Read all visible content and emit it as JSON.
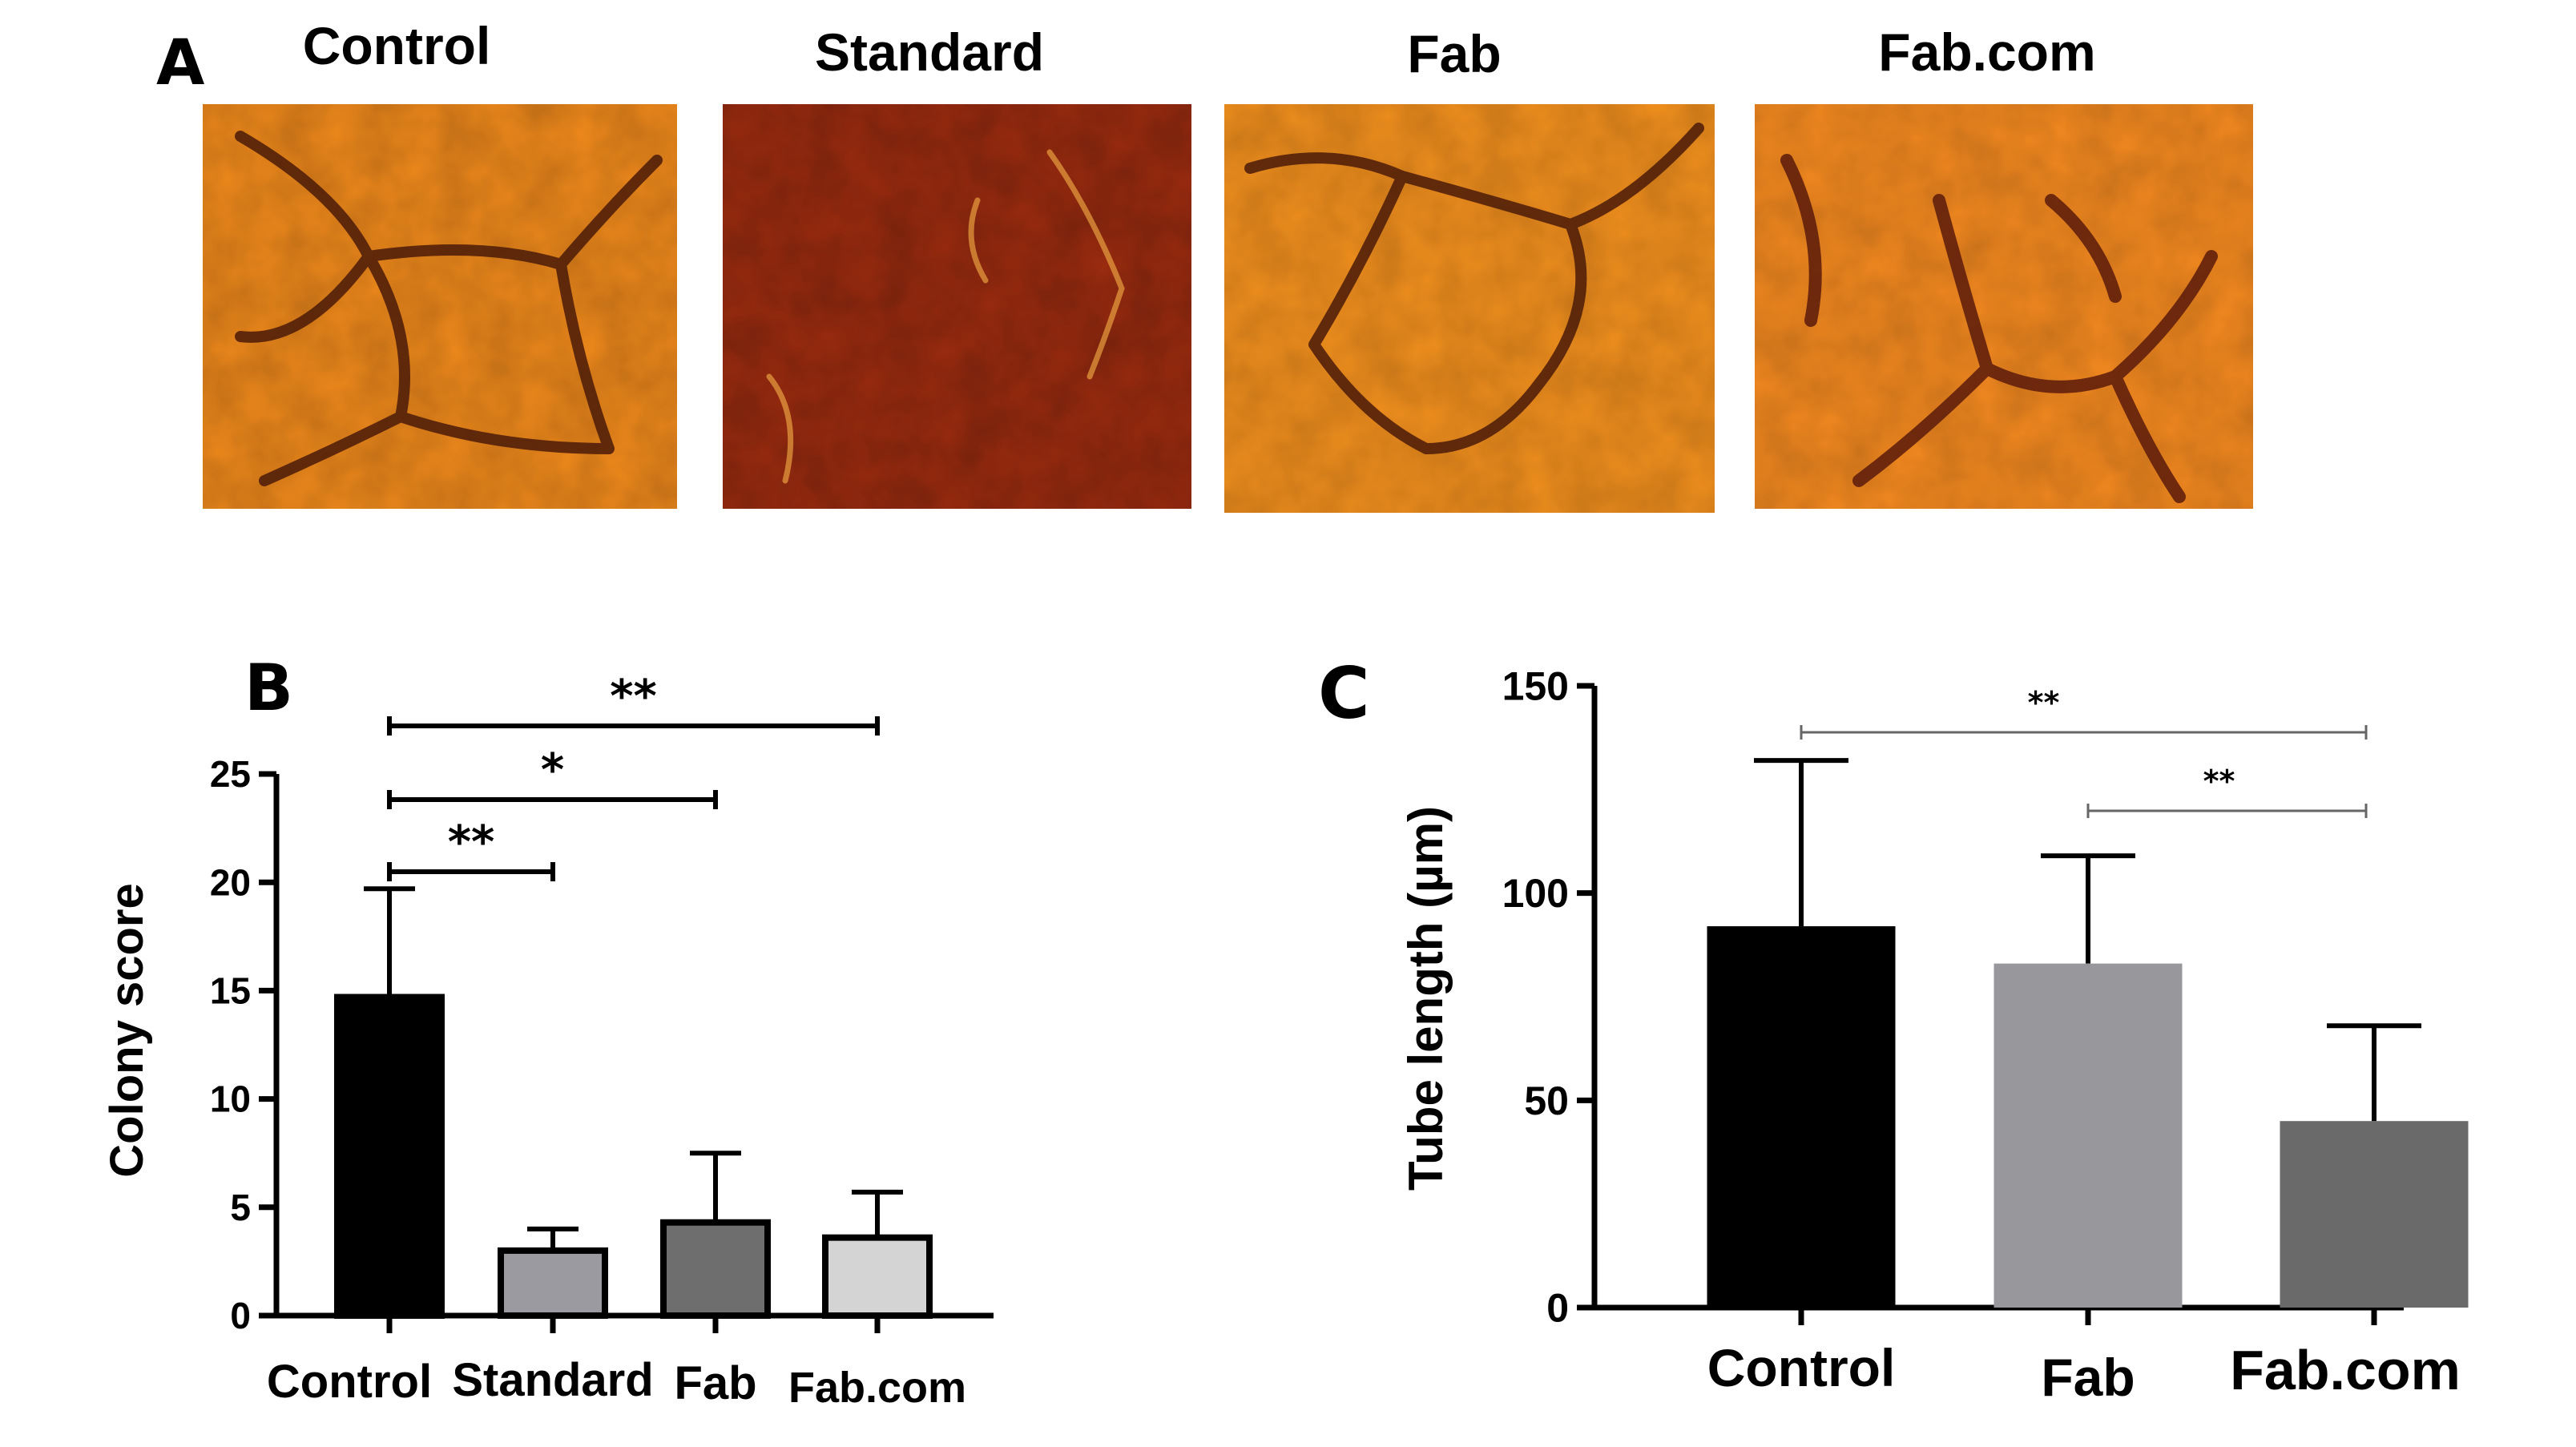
{
  "panel_a": {
    "letter": "A",
    "images": [
      {
        "label": "Control",
        "tone": "#f08a1c",
        "dark": "#4a1a08"
      },
      {
        "label": "Standard",
        "tone": "#9c2c10",
        "dark": "#3a0e04"
      },
      {
        "label": "Fab",
        "tone": "#f2901e",
        "dark": "#4a1a08"
      },
      {
        "label": "Fab.com",
        "tone": "#f48a20",
        "dark": "#5a1a0a"
      }
    ]
  },
  "chart_data": [
    {
      "panel": "B",
      "type": "bar",
      "title": "",
      "xlabel": "",
      "ylabel": "Colony score",
      "categories": [
        "Control",
        "Standard",
        "Fab",
        "Fab.com"
      ],
      "values": [
        14.7,
        3.0,
        4.3,
        3.6
      ],
      "errors": [
        5.0,
        1.0,
        3.2,
        2.1
      ],
      "colors": [
        "#000000",
        "#9a9aa0",
        "#6e6e6e",
        "#d4d4d4"
      ],
      "ylim": [
        0,
        25
      ],
      "yticks": [
        0,
        5,
        10,
        15,
        20,
        25
      ],
      "significance": [
        {
          "from": 0,
          "to": 1,
          "label": "**"
        },
        {
          "from": 0,
          "to": 2,
          "label": "*"
        },
        {
          "from": 0,
          "to": 3,
          "label": "**"
        }
      ]
    },
    {
      "panel": "C",
      "type": "bar",
      "title": "",
      "xlabel": "",
      "ylabel": "Tube length (µm)",
      "categories": [
        "Control",
        "Fab",
        "Fab.com"
      ],
      "values": [
        92,
        83,
        45
      ],
      "errors": [
        40,
        26,
        23
      ],
      "colors": [
        "#000000",
        "#98989c",
        "#6a6a6a"
      ],
      "ylim": [
        0,
        150
      ],
      "yticks": [
        0,
        50,
        100,
        150
      ],
      "significance": [
        {
          "from": 0,
          "to": 2,
          "label": "**"
        },
        {
          "from": 1,
          "to": 2,
          "label": "**"
        }
      ]
    }
  ]
}
